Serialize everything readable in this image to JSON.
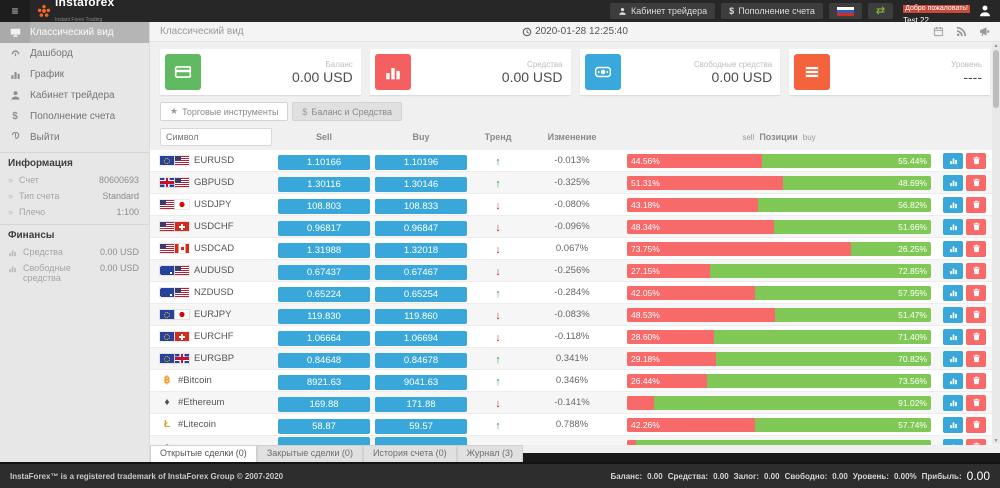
{
  "topbar": {
    "hamburger": "≡",
    "logo": "instaforex",
    "logo_sub": "Instant Forex Trading",
    "cabinet_btn": "Кабинет трейдера",
    "deposit_btn": "Пополнение счета",
    "deposit_sign": "$",
    "welcome": "Добро пожаловать!",
    "user": "Test 22"
  },
  "sidebar": {
    "items": [
      {
        "label": "Классический вид",
        "icon": "monitor",
        "active": true
      },
      {
        "label": "Дашборд",
        "icon": "dashboard",
        "active": false
      },
      {
        "label": "График",
        "icon": "chart",
        "active": false
      },
      {
        "label": "Кабинет трейдера",
        "icon": "user",
        "active": false
      },
      {
        "label": "Пополнение счета",
        "icon": "dollar",
        "active": false
      },
      {
        "label": "Выйти",
        "icon": "power",
        "active": false
      }
    ],
    "info_header": "Информация",
    "info_rows": [
      {
        "label": "Счет",
        "value": "80600693"
      },
      {
        "label": "Тип счета",
        "value": "Standard"
      },
      {
        "label": "Плечо",
        "value": "1:100"
      }
    ],
    "finance_header": "Финансы",
    "finance_rows": [
      {
        "label": "Средства",
        "value": "0.00 USD"
      },
      {
        "label": "Свободные средства",
        "value": "0.00 USD"
      }
    ]
  },
  "header": {
    "title": "Классический вид",
    "datetime": "2020-01-28 12:25:40"
  },
  "cards": [
    {
      "label": "Баланс",
      "value": "0.00 USD",
      "color": "#61b961",
      "icon": "card"
    },
    {
      "label": "Средства",
      "value": "0.00 USD",
      "color": "#f4605f",
      "icon": "bars"
    },
    {
      "label": "Свободные средства",
      "value": "0.00 USD",
      "color": "#38a8dd",
      "icon": "binoc"
    },
    {
      "label": "Уровень",
      "value": "----",
      "color": "#f4623e",
      "icon": "menu"
    }
  ],
  "toolbar": {
    "instruments_tab": "Торговые инструменты",
    "instruments_glyph": "★",
    "balance_tab": "Баланс и Средства",
    "balance_glyph": "$"
  },
  "table": {
    "symbol_placeholder": "Символ",
    "headers": {
      "sell": "Sell",
      "buy": "Buy",
      "trend": "Тренд",
      "change": "Изменение"
    },
    "positions_header": {
      "left": "sell",
      "center": "Позиции",
      "right": "buy"
    },
    "rows": [
      {
        "symbol": "EURUSD",
        "icons": [
          "eu",
          "us"
        ],
        "sell": "1.10166",
        "buy": "1.10196",
        "trend": "up",
        "change": "-0.013%",
        "sell_pct": 44.56,
        "buy_pct": 55.44,
        "sell_label": "44.56%",
        "buy_label": "55.44%"
      },
      {
        "symbol": "GBPUSD",
        "icons": [
          "gb",
          "us"
        ],
        "sell": "1.30116",
        "buy": "1.30146",
        "trend": "up",
        "change": "-0.325%",
        "sell_pct": 51.31,
        "buy_pct": 48.69,
        "sell_label": "51.31%",
        "buy_label": "48.69%"
      },
      {
        "symbol": "USDJPY",
        "icons": [
          "us",
          "jp"
        ],
        "sell": "108.803",
        "buy": "108.833",
        "trend": "down",
        "change": "-0.080%",
        "sell_pct": 43.18,
        "buy_pct": 56.82,
        "sell_label": "43.18%",
        "buy_label": "56.82%"
      },
      {
        "symbol": "USDCHF",
        "icons": [
          "us",
          "ch"
        ],
        "sell": "0.96817",
        "buy": "0.96847",
        "trend": "down",
        "change": "-0.096%",
        "sell_pct": 48.34,
        "buy_pct": 51.66,
        "sell_label": "48.34%",
        "buy_label": "51.66%"
      },
      {
        "symbol": "USDCAD",
        "icons": [
          "us",
          "ca"
        ],
        "sell": "1.31988",
        "buy": "1.32018",
        "trend": "down",
        "change": "0.067%",
        "sell_pct": 73.75,
        "buy_pct": 26.25,
        "sell_label": "73.75%",
        "buy_label": "26.25%"
      },
      {
        "symbol": "AUDUSD",
        "icons": [
          "au",
          "us"
        ],
        "sell": "0.67437",
        "buy": "0.67467",
        "trend": "down",
        "change": "-0.256%",
        "sell_pct": 27.15,
        "buy_pct": 72.85,
        "sell_label": "27.15%",
        "buy_label": "72.85%"
      },
      {
        "symbol": "NZDUSD",
        "icons": [
          "nz",
          "us"
        ],
        "sell": "0.65224",
        "buy": "0.65254",
        "trend": "up",
        "change": "-0.284%",
        "sell_pct": 42.05,
        "buy_pct": 57.95,
        "sell_label": "42.05%",
        "buy_label": "57.95%"
      },
      {
        "symbol": "EURJPY",
        "icons": [
          "eu",
          "jp"
        ],
        "sell": "119.830",
        "buy": "119.860",
        "trend": "down",
        "change": "-0.083%",
        "sell_pct": 48.53,
        "buy_pct": 51.47,
        "sell_label": "48.53%",
        "buy_label": "51.47%"
      },
      {
        "symbol": "EURCHF",
        "icons": [
          "eu",
          "ch"
        ],
        "sell": "1.06664",
        "buy": "1.06694",
        "trend": "down",
        "change": "-0.118%",
        "sell_pct": 28.6,
        "buy_pct": 71.4,
        "sell_label": "28.60%",
        "buy_label": "71.40%"
      },
      {
        "symbol": "EURGBP",
        "icons": [
          "eu",
          "gb"
        ],
        "sell": "0.84648",
        "buy": "0.84678",
        "trend": "up",
        "change": "0.341%",
        "sell_pct": 29.18,
        "buy_pct": 70.82,
        "sell_label": "29.18%",
        "buy_label": "70.82%"
      },
      {
        "symbol": "#Bitcoin",
        "icons": [
          "btc"
        ],
        "sell": "8921.63",
        "buy": "9041.63",
        "trend": "up",
        "change": "0.346%",
        "sell_pct": 26.44,
        "buy_pct": 73.56,
        "sell_label": "26.44%",
        "buy_label": "73.56%"
      },
      {
        "symbol": "#Ethereum",
        "icons": [
          "eth"
        ],
        "sell": "169.88",
        "buy": "171.88",
        "trend": "down",
        "change": "-0.141%",
        "sell_pct": 8.98,
        "buy_pct": 91.02,
        "sell_label": "",
        "buy_label": "91.02%"
      },
      {
        "symbol": "#Litecoin",
        "icons": [
          "ltc"
        ],
        "sell": "58.87",
        "buy": "59.57",
        "trend": "up",
        "change": "0.788%",
        "sell_pct": 42.26,
        "buy_pct": 57.74,
        "sell_label": "42.26%",
        "buy_label": "57.74%"
      },
      {
        "symbol": "",
        "icons": [
          "dot"
        ],
        "sell": "",
        "buy": "",
        "trend": "",
        "change": "",
        "sell_pct": 3,
        "buy_pct": 97,
        "sell_label": "",
        "buy_label": "",
        "partial": true
      }
    ]
  },
  "bottom_tabs": [
    {
      "label": "Открытые сделки (0)",
      "active": true
    },
    {
      "label": "Закрытые сделки (0)",
      "active": false
    },
    {
      "label": "История счета (0)",
      "active": false
    },
    {
      "label": "Журнал (3)",
      "active": false
    }
  ],
  "footer": {
    "trademark": "InstaForex™ is a registered trademark of InstaForex Group © 2007-2020",
    "stats": [
      {
        "label": "Баланс:",
        "value": "0.00",
        "big": false
      },
      {
        "label": "Средства:",
        "value": "0.00",
        "big": false
      },
      {
        "label": "Залог:",
        "value": "0.00",
        "big": false
      },
      {
        "label": "Свободно:",
        "value": "0.00",
        "big": false
      },
      {
        "label": "Уровень:",
        "value": "0.00%",
        "big": false
      },
      {
        "label": "Прибыль:",
        "value": "0.00",
        "big": true
      }
    ]
  }
}
